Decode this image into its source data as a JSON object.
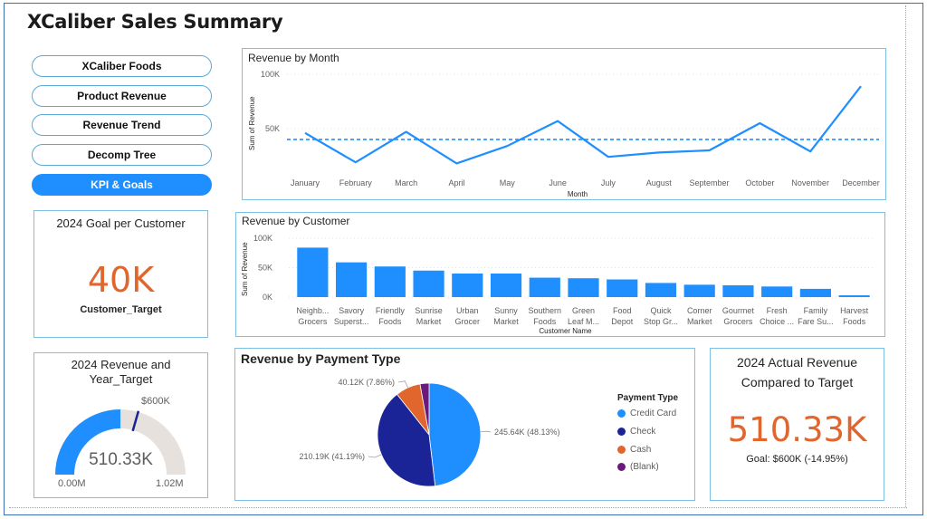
{
  "header": {
    "title": "XCaliber Sales Summary"
  },
  "nav": {
    "items": [
      {
        "label": "XCaliber Foods",
        "active": false
      },
      {
        "label": "Product Revenue",
        "active": false
      },
      {
        "label": "Revenue Trend",
        "active": false
      },
      {
        "label": "Decomp Tree",
        "active": false
      },
      {
        "label": "KPI & Goals",
        "active": true
      }
    ]
  },
  "goal_card": {
    "title": "2024 Goal per Customer",
    "value": "40K",
    "label": "Customer_Target"
  },
  "gauge_card": {
    "title_line1": "2024 Revenue and",
    "title_line2": "Year_Target",
    "value": "510.33K",
    "min": "0.00M",
    "max": "1.02M",
    "target": "$600K",
    "fraction": 0.5
  },
  "actual_card": {
    "title_line1": "2024 Actual Revenue",
    "title_line2": "Compared to Target",
    "value": "510.33K",
    "goal": "Goal: $600K (-14.95%)"
  },
  "colors": {
    "accent": "#1f8fff",
    "kpi": "#e0662e",
    "border": "#7fc0e6"
  },
  "chart_data": [
    {
      "type": "line",
      "title": "Revenue by Month",
      "xlabel": "Month",
      "ylabel": "Sum of Revenue",
      "ylim": [
        0,
        100000
      ],
      "yticks": [
        "100K",
        "50K"
      ],
      "categories": [
        "January",
        "February",
        "March",
        "April",
        "May",
        "June",
        "July",
        "August",
        "September",
        "October",
        "November",
        "December"
      ],
      "values": [
        46000,
        19000,
        47000,
        18000,
        34000,
        57000,
        24000,
        28000,
        30000,
        55000,
        29000,
        89000
      ],
      "average": 40000
    },
    {
      "type": "bar",
      "title": "Revenue by Customer",
      "xlabel": "Customer Name",
      "ylabel": "Sum of Revenue",
      "ylim": [
        0,
        100000
      ],
      "yticks": [
        "100K",
        "50K",
        "0K"
      ],
      "categories": [
        [
          "Neighb...",
          "Grocers"
        ],
        [
          "Savory",
          "Superst..."
        ],
        [
          "Friendly",
          "Foods"
        ],
        [
          "Sunrise",
          "Market"
        ],
        [
          "Urban",
          "Grocer"
        ],
        [
          "Sunny",
          "Market"
        ],
        [
          "Southern",
          "Foods"
        ],
        [
          "Green",
          "Leaf M..."
        ],
        [
          "Food",
          "Depot"
        ],
        [
          "Quick",
          "Stop Gr..."
        ],
        [
          "Corner",
          "Market"
        ],
        [
          "Gourmet",
          "Grocers"
        ],
        [
          "Fresh",
          "Choice ..."
        ],
        [
          "Family",
          "Fare Su..."
        ],
        [
          "Harvest",
          "Foods"
        ]
      ],
      "values": [
        84000,
        59000,
        52000,
        45000,
        40000,
        40000,
        33000,
        32000,
        30000,
        24000,
        21000,
        20000,
        18000,
        14000,
        3000
      ]
    },
    {
      "type": "pie",
      "title": "Revenue by Payment Type",
      "legend_title": "Payment Type",
      "legend_position": "right",
      "series": [
        {
          "name": "Credit Card",
          "value": 245640,
          "label": "245.64K (48.13%)",
          "color": "#1f8fff"
        },
        {
          "name": "Check",
          "value": 210190,
          "label": "210.19K (41.19%)",
          "color": "#1a2497"
        },
        {
          "name": "Cash",
          "value": 40120,
          "label": "40.12K (7.86%)",
          "color": "#e0662e"
        },
        {
          "name": "(Blank)",
          "value": 14380,
          "label": "",
          "color": "#6a1a7a"
        }
      ]
    }
  ]
}
